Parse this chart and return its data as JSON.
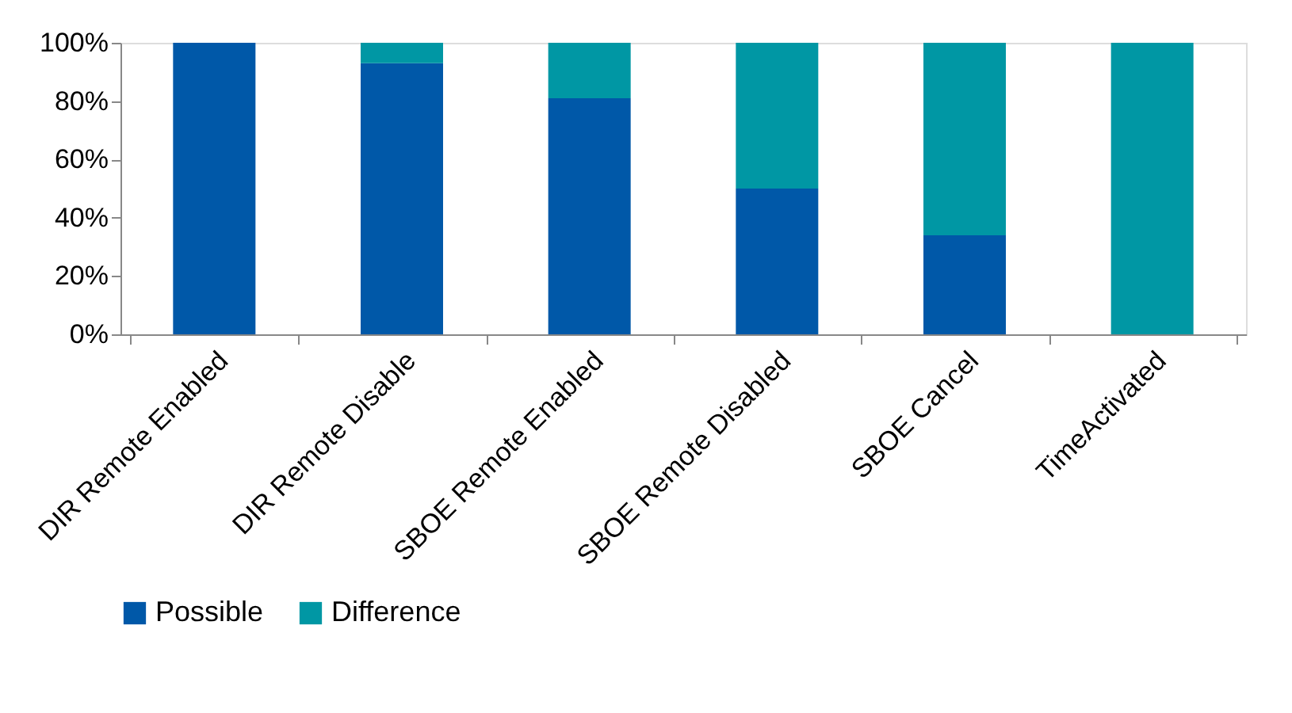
{
  "chart_data": {
    "type": "bar",
    "stacked": true,
    "categories": [
      "DIR Remote Enabled",
      "DIR Remote Disable",
      "SBOE Remote Enabled",
      "SBOE Remote Disabled",
      "SBOE Cancel",
      "TimeActivated"
    ],
    "series": [
      {
        "name": "Possible",
        "color": "#0058a8",
        "values": [
          100,
          93,
          81,
          50,
          34,
          0
        ]
      },
      {
        "name": "Difference",
        "color": "#0097a4",
        "values": [
          0,
          7,
          19,
          50,
          66,
          100
        ]
      }
    ],
    "ylim": [
      0,
      100
    ],
    "yticks": [
      {
        "value": 0,
        "label": "0%"
      },
      {
        "value": 20,
        "label": "20%"
      },
      {
        "value": 40,
        "label": "40%"
      },
      {
        "value": 60,
        "label": "60%"
      },
      {
        "value": 80,
        "label": "80%"
      },
      {
        "value": 100,
        "label": "100%"
      }
    ],
    "grid": false,
    "legend": "bottom"
  }
}
